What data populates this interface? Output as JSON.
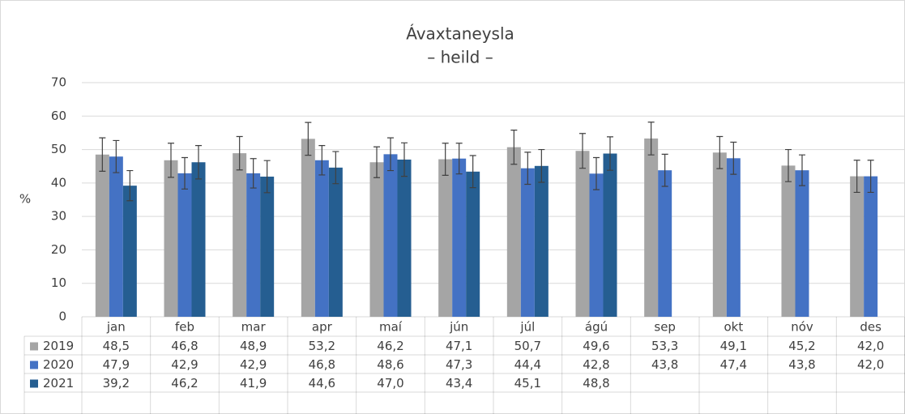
{
  "chart_data": {
    "type": "bar",
    "title": "Ávaxtaneysla",
    "subtitle": "– heild –",
    "y_label": "%",
    "categories": [
      "jan",
      "feb",
      "mar",
      "apr",
      "maí",
      "jún",
      "júl",
      "ágú",
      "sep",
      "okt",
      "nóv",
      "des"
    ],
    "series": [
      {
        "name": "2019",
        "color": "#a5a5a5",
        "values": [
          48.5,
          46.8,
          48.9,
          53.2,
          46.2,
          47.1,
          50.7,
          49.6,
          53.3,
          49.1,
          45.2,
          42.0
        ],
        "value_labels": [
          "48,5",
          "46,8",
          "48,9",
          "53,2",
          "46,2",
          "47,1",
          "50,7",
          "49,6",
          "53,3",
          "49,1",
          "45,2",
          "42,0"
        ],
        "errors": [
          5.0,
          5.1,
          5.0,
          4.9,
          4.6,
          4.8,
          5.1,
          5.2,
          4.9,
          4.8,
          4.8,
          4.8
        ]
      },
      {
        "name": "2020",
        "color": "#4472c4",
        "values": [
          47.9,
          42.9,
          42.9,
          46.8,
          48.6,
          47.3,
          44.4,
          42.8,
          43.8,
          47.4,
          43.8,
          42.0
        ],
        "value_labels": [
          "47,9",
          "42,9",
          "42,9",
          "46,8",
          "48,6",
          "47,3",
          "44,4",
          "42,8",
          "43,8",
          "47,4",
          "43,8",
          "42,0"
        ],
        "errors": [
          4.8,
          4.7,
          4.4,
          4.4,
          4.9,
          4.6,
          4.8,
          4.8,
          4.8,
          4.8,
          4.6,
          4.8
        ]
      },
      {
        "name": "2021",
        "color": "#255e91",
        "values": [
          39.2,
          46.2,
          41.9,
          44.6,
          47.0,
          43.4,
          45.1,
          48.8,
          null,
          null,
          null,
          null
        ],
        "value_labels": [
          "39,2",
          "46,2",
          "41,9",
          "44,6",
          "47,0",
          "43,4",
          "45,1",
          "48,8",
          null,
          null,
          null,
          null
        ],
        "errors": [
          4.5,
          5.0,
          4.8,
          4.8,
          5.0,
          4.8,
          4.9,
          5.0,
          null,
          null,
          null,
          null
        ]
      }
    ],
    "ylim": [
      0,
      70
    ],
    "yticks": [
      0,
      10,
      20,
      30,
      40,
      50,
      60,
      70
    ],
    "grid": true
  }
}
